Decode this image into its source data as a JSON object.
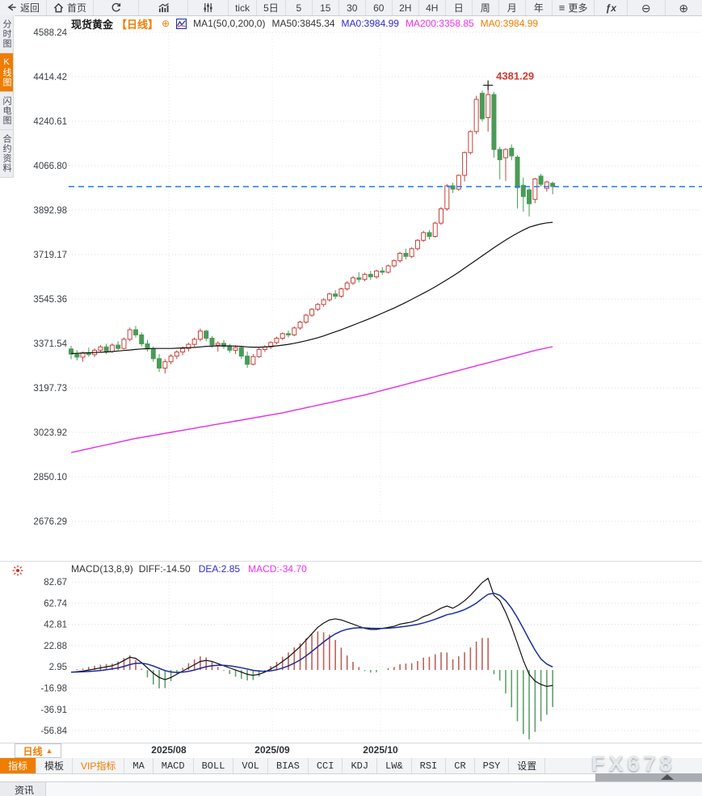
{
  "toolbar": {
    "back_label": "返回",
    "home_label": "首页",
    "tick_label": "tick",
    "five_day_label": "5日",
    "intervals": [
      "5",
      "15",
      "30",
      "60",
      "2H",
      "4H",
      "日",
      "周",
      "月",
      "年"
    ],
    "menu_icon": "≡",
    "more_label": "更多",
    "fx_label": "ƒx",
    "zoom_out_icon": "⊖",
    "zoom_in_icon": "⊕"
  },
  "sidebar": {
    "items": [
      {
        "id": "time-share",
        "label": "分时图",
        "active": false
      },
      {
        "id": "kline",
        "label": "K线图",
        "active": true
      },
      {
        "id": "lightning",
        "label": "闪电图",
        "active": false
      },
      {
        "id": "contract-info",
        "label": "合约资料",
        "active": false
      }
    ]
  },
  "chart_header": {
    "symbol": "现货黄金",
    "period": "【日线】",
    "expand_icon": "⊕",
    "ma_formula": "MA1(50,0,200,0)",
    "ma50": "MA50:3845.34",
    "ma0_blue": "MA0:3984.99",
    "ma200": "MA200:3358.85",
    "ma0_orange": "MA0:3984.99"
  },
  "macd_header": {
    "formula": "MACD(13,8,9)",
    "diff": "DIFF:-14.50",
    "dea": "DEA:2.85",
    "macd": "MACD:-34.70"
  },
  "bottom": {
    "period_button": "日线",
    "period_arrow": "▲",
    "tabs": [
      {
        "label": "指标",
        "active": true
      },
      {
        "label": "模板"
      },
      {
        "label": "VIP指标",
        "accent": true
      },
      {
        "label": "MA",
        "mono": true
      },
      {
        "label": "MACD",
        "mono": true
      },
      {
        "label": "BOLL",
        "mono": true
      },
      {
        "label": "VOL",
        "mono": true
      },
      {
        "label": "BIAS",
        "mono": true
      },
      {
        "label": "CCI",
        "mono": true
      },
      {
        "label": "KDJ",
        "mono": true
      },
      {
        "label": "LW&",
        "mono": true
      },
      {
        "label": "RSI",
        "mono": true
      },
      {
        "label": "CR",
        "mono": true
      },
      {
        "label": "PSY",
        "mono": true
      },
      {
        "label": "设置"
      }
    ],
    "news_label": "资讯",
    "watermark": "FX678"
  },
  "chart_data": {
    "type": "candlestick",
    "title": "现货黄金 日线",
    "y_ticks": [
      4588.24,
      4414.42,
      4240.61,
      4066.8,
      3892.98,
      3719.17,
      3545.36,
      3371.54,
      3197.73,
      3023.92,
      2850.1,
      2676.29
    ],
    "x_labels": [
      "2025/08",
      "2025/09",
      "2025/10"
    ],
    "x_label_positions": [
      209,
      337,
      471
    ],
    "last_price": 3984.99,
    "annotation": {
      "label": "4381.29",
      "price": 4381.29,
      "candle_index": 71
    },
    "legend": [
      {
        "name": "MA50",
        "value": 3845.34,
        "color": "#111111"
      },
      {
        "name": "MA200",
        "value": 3358.85,
        "color": "#e22ee2"
      },
      {
        "name": "MA0",
        "value": 3984.99,
        "color": "#ef7d00"
      }
    ],
    "candles": [
      [
        3350,
        3362,
        3310,
        3330
      ],
      [
        3330,
        3345,
        3305,
        3318
      ],
      [
        3318,
        3340,
        3300,
        3335
      ],
      [
        3335,
        3355,
        3320,
        3328
      ],
      [
        3328,
        3352,
        3318,
        3345
      ],
      [
        3345,
        3365,
        3335,
        3358
      ],
      [
        3358,
        3370,
        3330,
        3340
      ],
      [
        3340,
        3372,
        3334,
        3365
      ],
      [
        3365,
        3380,
        3345,
        3352
      ],
      [
        3352,
        3395,
        3348,
        3388
      ],
      [
        3388,
        3434,
        3380,
        3425
      ],
      [
        3425,
        3440,
        3395,
        3405
      ],
      [
        3405,
        3415,
        3360,
        3370
      ],
      [
        3370,
        3385,
        3340,
        3350
      ],
      [
        3350,
        3360,
        3300,
        3312
      ],
      [
        3312,
        3330,
        3260,
        3275
      ],
      [
        3275,
        3310,
        3254,
        3300
      ],
      [
        3300,
        3330,
        3290,
        3322
      ],
      [
        3322,
        3345,
        3310,
        3338
      ],
      [
        3338,
        3360,
        3325,
        3352
      ],
      [
        3352,
        3375,
        3340,
        3368
      ],
      [
        3368,
        3395,
        3358,
        3388
      ],
      [
        3388,
        3430,
        3380,
        3420
      ],
      [
        3420,
        3425,
        3380,
        3392
      ],
      [
        3392,
        3400,
        3355,
        3365
      ],
      [
        3365,
        3380,
        3340,
        3372
      ],
      [
        3372,
        3385,
        3350,
        3360
      ],
      [
        3360,
        3370,
        3335,
        3345
      ],
      [
        3345,
        3365,
        3330,
        3355
      ],
      [
        3355,
        3360,
        3310,
        3322
      ],
      [
        3322,
        3340,
        3276,
        3290
      ],
      [
        3290,
        3330,
        3285,
        3320
      ],
      [
        3320,
        3355,
        3315,
        3348
      ],
      [
        3348,
        3365,
        3338,
        3358
      ],
      [
        3358,
        3380,
        3350,
        3375
      ],
      [
        3375,
        3398,
        3368,
        3392
      ],
      [
        3392,
        3415,
        3385,
        3410
      ],
      [
        3410,
        3422,
        3395,
        3405
      ],
      [
        3405,
        3438,
        3400,
        3432
      ],
      [
        3432,
        3460,
        3425,
        3455
      ],
      [
        3455,
        3488,
        3448,
        3482
      ],
      [
        3482,
        3510,
        3475,
        3505
      ],
      [
        3505,
        3530,
        3498,
        3524
      ],
      [
        3524,
        3548,
        3515,
        3542
      ],
      [
        3542,
        3570,
        3535,
        3565
      ],
      [
        3565,
        3580,
        3545,
        3556
      ],
      [
        3556,
        3590,
        3550,
        3585
      ],
      [
        3585,
        3615,
        3578,
        3608
      ],
      [
        3608,
        3635,
        3600,
        3628
      ],
      [
        3628,
        3650,
        3610,
        3622
      ],
      [
        3622,
        3648,
        3615,
        3642
      ],
      [
        3642,
        3655,
        3620,
        3632
      ],
      [
        3632,
        3660,
        3625,
        3655
      ],
      [
        3655,
        3670,
        3640,
        3650
      ],
      [
        3650,
        3680,
        3645,
        3675
      ],
      [
        3675,
        3700,
        3668,
        3695
      ],
      [
        3695,
        3730,
        3688,
        3724
      ],
      [
        3724,
        3742,
        3700,
        3712
      ],
      [
        3712,
        3748,
        3705,
        3742
      ],
      [
        3742,
        3780,
        3735,
        3775
      ],
      [
        3775,
        3812,
        3768,
        3805
      ],
      [
        3805,
        3815,
        3778,
        3790
      ],
      [
        3790,
        3848,
        3785,
        3842
      ],
      [
        3842,
        3905,
        3835,
        3898
      ],
      [
        3898,
        3995,
        3890,
        3988
      ],
      [
        3988,
        4000,
        3960,
        3975
      ],
      [
        3975,
        4032,
        3968,
        4029
      ],
      [
        4029,
        4122,
        4005,
        4118
      ],
      [
        4118,
        4205,
        4110,
        4200
      ],
      [
        4200,
        4340,
        4190,
        4326
      ],
      [
        4350,
        4360,
        4240,
        4250
      ],
      [
        4255,
        4381.29,
        4200,
        4345
      ],
      [
        4345,
        4355,
        4098,
        4130
      ],
      [
        4130,
        4140,
        4013,
        4090
      ],
      [
        4098,
        4135,
        4007,
        4130
      ],
      [
        4135,
        4150,
        4088,
        4105
      ],
      [
        4100,
        4108,
        3899,
        3981
      ],
      [
        3990,
        4020,
        3887,
        3946
      ],
      [
        3972,
        3980,
        3868,
        3918
      ],
      [
        3935,
        4019,
        3920,
        4015
      ],
      [
        4026,
        4035,
        3985,
        3994
      ],
      [
        3978,
        4008,
        3965,
        4003
      ],
      [
        3998,
        4005,
        3955,
        3984.99
      ]
    ],
    "ma50": [
      3332,
      3333,
      3334,
      3335,
      3336,
      3337,
      3338,
      3340,
      3342,
      3344,
      3346,
      3348,
      3350,
      3351,
      3352,
      3352,
      3352,
      3352,
      3353,
      3354,
      3355,
      3356,
      3358,
      3360,
      3361,
      3362,
      3362,
      3362,
      3361,
      3360,
      3358,
      3357,
      3357,
      3358,
      3360,
      3362,
      3365,
      3368,
      3372,
      3377,
      3382,
      3388,
      3394,
      3401,
      3409,
      3417,
      3425,
      3434,
      3443,
      3452,
      3461,
      3470,
      3480,
      3490,
      3500,
      3510,
      3521,
      3532,
      3544,
      3556,
      3568,
      3580,
      3593,
      3607,
      3621,
      3635,
      3650,
      3666,
      3682,
      3698,
      3714,
      3730,
      3746,
      3761,
      3776,
      3790,
      3803,
      3815,
      3826,
      3833,
      3839,
      3843,
      3845.34
    ],
    "ma200": [
      2945,
      2950,
      2955,
      2960,
      2965,
      2970,
      2975,
      2980,
      2985,
      2990,
      2995,
      3000,
      3004,
      3008,
      3012,
      3016,
      3020,
      3024,
      3028,
      3032,
      3036,
      3040,
      3044,
      3048,
      3052,
      3056,
      3060,
      3064,
      3068,
      3072,
      3076,
      3080,
      3084,
      3088,
      3092,
      3096,
      3100,
      3105,
      3110,
      3115,
      3120,
      3125,
      3130,
      3135,
      3140,
      3145,
      3150,
      3155,
      3160,
      3165,
      3170,
      3176,
      3182,
      3188,
      3194,
      3200,
      3206,
      3212,
      3218,
      3224,
      3230,
      3236,
      3242,
      3248,
      3254,
      3260,
      3266,
      3272,
      3278,
      3284,
      3290,
      3296,
      3302,
      3308,
      3314,
      3320,
      3326,
      3332,
      3338,
      3344,
      3349,
      3354,
      3358.85
    ],
    "macd": {
      "y_ticks": [
        82.67,
        62.74,
        42.81,
        22.88,
        2.95,
        -16.98,
        -36.91,
        -56.84
      ],
      "diff": [
        -2,
        -1.5,
        -1,
        0,
        1,
        2,
        3,
        4,
        6,
        9,
        12,
        11,
        7,
        2,
        -3,
        -7,
        -9,
        -7,
        -4,
        -1,
        2,
        5,
        8,
        9,
        8,
        6,
        4,
        2,
        0,
        -2,
        -4,
        -5,
        -4,
        -2,
        1,
        4,
        8,
        12,
        17,
        22,
        28,
        34,
        40,
        44,
        47,
        48,
        47,
        45,
        43,
        41,
        39,
        38,
        38,
        39,
        40,
        41,
        43,
        44,
        45,
        47,
        50,
        52,
        55,
        58,
        60,
        58,
        61,
        65,
        70,
        76,
        82,
        86,
        70,
        65,
        54,
        40.5,
        25,
        9,
        -4,
        -10.4,
        -13.6,
        -15.4,
        -14.5
      ],
      "dea": [
        -2,
        -1.9,
        -1.7,
        -1.4,
        -1,
        -0.5,
        0.2,
        1,
        2,
        3.4,
        5.1,
        6.3,
        6.4,
        5.5,
        3.8,
        1.6,
        -0.5,
        -1.8,
        -2.3,
        -2,
        -1.2,
        0,
        1.6,
        3.1,
        4.1,
        4.5,
        4.4,
        3.9,
        3.1,
        2.1,
        0.9,
        -0.3,
        -1,
        -1.2,
        -0.8,
        0.2,
        1.8,
        3.8,
        6.4,
        9.5,
        13.2,
        17.4,
        21.9,
        26.3,
        30.4,
        33.9,
        36.5,
        38.2,
        39.2,
        39.6,
        39.5,
        39.2,
        39,
        39,
        39.2,
        39.6,
        40.3,
        41,
        41.8,
        42.8,
        44.2,
        45.8,
        47.6,
        49.7,
        51.8,
        53,
        54.6,
        56.7,
        59.4,
        62.7,
        67,
        71,
        72,
        70,
        65,
        58,
        49,
        39,
        28.5,
        18.6,
        10.4,
        5.6,
        2.85
      ]
    },
    "colors": {
      "up": "#c5433c",
      "down": "#4b9a58",
      "hist_up": "#bf6058",
      "hist_down": "#61a06b",
      "ma50": "#111111",
      "ma200": "#e22ee2",
      "diff": "#111111",
      "dea": "#1b2d9b",
      "last_price_line": "#1d7bf2",
      "accent": "#ef7d00",
      "annotation": "#d03a32",
      "grid": "#dcdcde"
    }
  }
}
